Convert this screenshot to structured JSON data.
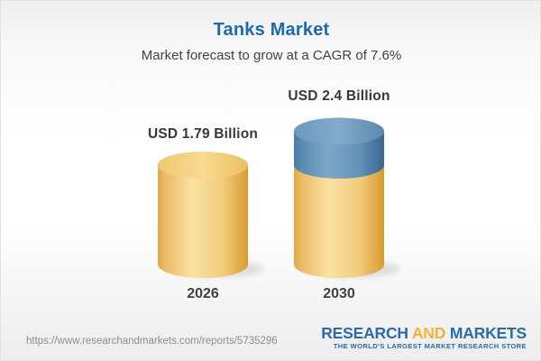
{
  "header": {
    "title": "Tanks Market",
    "subtitle": "Market forecast to grow at a CAGR of 7.6%"
  },
  "chart_data": {
    "type": "bar",
    "style": "3d-cylinder",
    "title": "Tanks Market",
    "subtitle": "Market forecast to grow at a CAGR of 7.6%",
    "cagr_percent": 7.6,
    "unit": "USD Billion",
    "categories": [
      "2026",
      "2030"
    ],
    "values": [
      1.79,
      2.4
    ],
    "value_labels": [
      "USD 1.79 Billion",
      "USD 2.4 Billion"
    ],
    "bar_segments": [
      [
        {
          "value": 1.79,
          "color": "gold"
        }
      ],
      [
        {
          "value": 1.79,
          "color": "gold"
        },
        {
          "value": 0.61,
          "color": "blue"
        }
      ]
    ],
    "axes_visible": false,
    "grid": false,
    "legend": false,
    "palette": {
      "gold": "#F2CE7C",
      "blue": "#5585AF"
    }
  },
  "colors": {
    "title_blue": "#1b6bae",
    "logo_blue": "#2c6ba7",
    "logo_gold": "#f0b434"
  },
  "footer": {
    "url": "https://www.researchandmarkets.com/reports/5735296",
    "logo": {
      "research": "RESEARCH",
      "and": "AND",
      "markets": "MARKETS",
      "tagline": "THE WORLD'S LARGEST MARKET RESEARCH STORE"
    }
  }
}
